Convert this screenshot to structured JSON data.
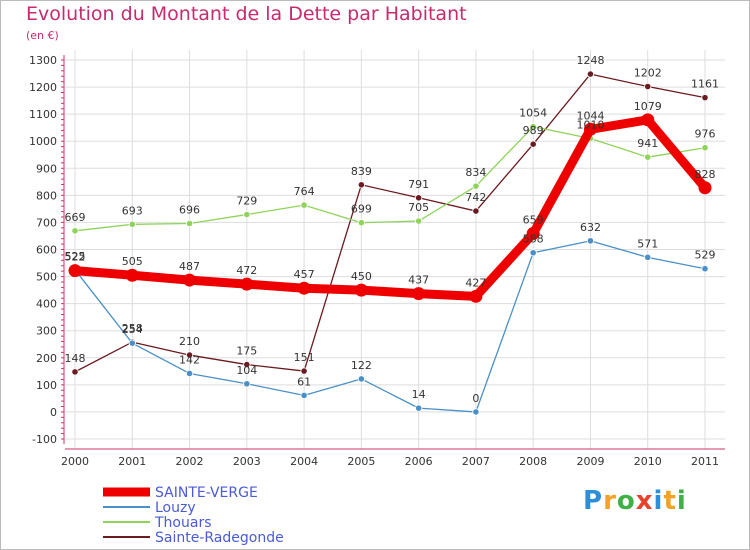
{
  "title": "Evolution du Montant de la Dette par Habitant",
  "unit": "(en €)",
  "logo": "Proxiti",
  "chart_data": {
    "type": "line",
    "title": "Evolution du Montant de la Dette par Habitant",
    "subtitle": "(en €)",
    "xlabel": "",
    "ylabel": "",
    "x": [
      "2000",
      "2001",
      "2002",
      "2003",
      "2004",
      "2005",
      "2006",
      "2007",
      "2008",
      "2009",
      "2010",
      "2011"
    ],
    "ylim": [
      -100,
      1300
    ],
    "yticks": [
      -100,
      0,
      100,
      200,
      300,
      400,
      500,
      600,
      700,
      800,
      900,
      1000,
      1100,
      1200,
      1300
    ],
    "grid": true,
    "legend_position": "bottom-left",
    "series": [
      {
        "name": "SAINTE-VERGE",
        "color": "#ee0000",
        "values": [
          522,
          505,
          487,
          472,
          457,
          450,
          437,
          427,
          659,
          1044,
          1079,
          828
        ]
      },
      {
        "name": "Louzy",
        "color": "#4a90c8",
        "values": [
          525,
          254,
          142,
          104,
          61,
          122,
          14,
          0,
          588,
          632,
          571,
          529
        ]
      },
      {
        "name": "Thouars",
        "color": "#8fd35a",
        "values": [
          669,
          693,
          696,
          729,
          764,
          699,
          705,
          834,
          1054,
          1010,
          941,
          976
        ]
      },
      {
        "name": "Sainte-Radegonde",
        "color": "#6b1a20",
        "values": [
          148,
          258,
          210,
          175,
          151,
          839,
          791,
          742,
          989,
          1248,
          1202,
          1161
        ]
      }
    ]
  }
}
